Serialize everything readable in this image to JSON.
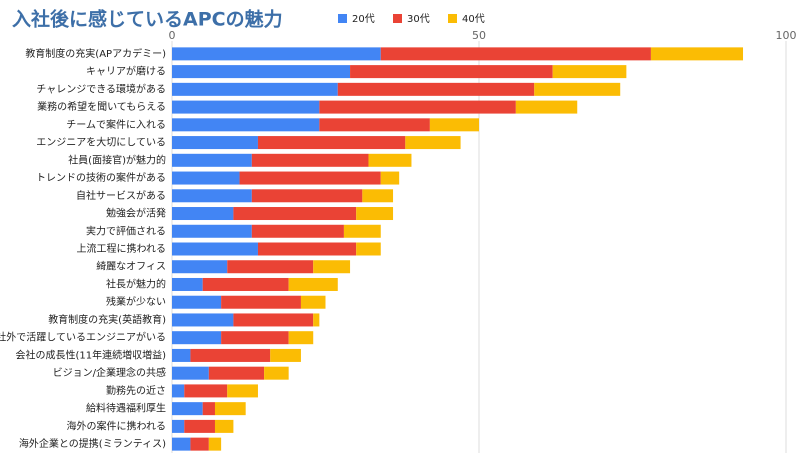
{
  "chart_data": {
    "type": "bar",
    "orientation": "horizontal",
    "stacked": true,
    "title": "入社後に感じているAPCの魅力",
    "categories": [
      "教育制度の充実(APアカデミー)",
      "キャリアが磨ける",
      "チャレンジできる環境がある",
      "業務の希望を聞いてもらえる",
      "チームで案件に入れる",
      "エンジニアを大切にしている",
      "社員(面接官)が魅力的",
      "トレンドの技術の案件がある",
      "自社サービスがある",
      "勉強会が活発",
      "実力で評価される",
      "上流工程に携われる",
      "綺麗なオフィス",
      "社長が魅力的",
      "残業が少ない",
      "教育制度の充実(英語教育)",
      "社外で活躍しているエンジニアがいる",
      "会社の成長性(11年連続増収増益)",
      "ビジョン/企業理念の共感",
      "勤務先の近さ",
      "給料待遇福利厚生",
      "海外の案件に携われる",
      "海外企業との提携(ミランティス)"
    ],
    "series": [
      {
        "name": "20代",
        "color": "#4285f4",
        "values": [
          34,
          29,
          27,
          24,
          24,
          14,
          13,
          11,
          13,
          10,
          13,
          14,
          9,
          5,
          8,
          10,
          8,
          3,
          6,
          2,
          5,
          2,
          3
        ]
      },
      {
        "name": "30代",
        "color": "#ea4335",
        "values": [
          44,
          33,
          32,
          32,
          18,
          24,
          19,
          23,
          18,
          20,
          15,
          16,
          14,
          14,
          13,
          13,
          11,
          13,
          9,
          7,
          2,
          5,
          3
        ]
      },
      {
        "name": "40代",
        "color": "#fbbc04",
        "values": [
          15,
          12,
          14,
          10,
          8,
          9,
          7,
          3,
          5,
          6,
          6,
          4,
          6,
          8,
          4,
          1,
          4,
          5,
          4,
          5,
          5,
          3,
          2
        ]
      }
    ],
    "xlim": [
      0,
      100
    ],
    "xticks": [
      0,
      50,
      100
    ],
    "grid": true,
    "legend": "top"
  }
}
